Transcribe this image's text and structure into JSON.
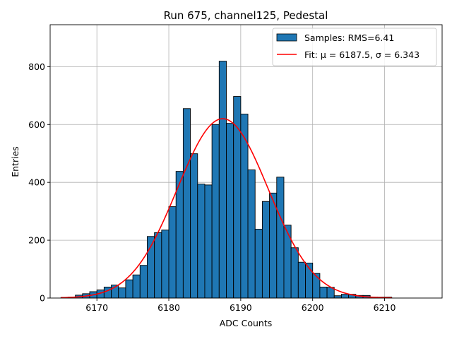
{
  "chart_data": {
    "type": "bar",
    "title": "Run 675, channel125, Pedestal",
    "xlabel": "ADC Counts",
    "ylabel": "Entries",
    "xlim": [
      6163.5,
      6218
    ],
    "ylim": [
      0,
      945
    ],
    "xticks": [
      6170,
      6180,
      6190,
      6200,
      6210
    ],
    "yticks": [
      0,
      200,
      400,
      600,
      800
    ],
    "grid": true,
    "legend_position": "top-right",
    "histogram": {
      "name": "Samples: RMS=6.41",
      "color": "#1f77b4",
      "edge_color": "#000000",
      "bin_width": 1,
      "bin_starts": [
        6165,
        6166,
        6167,
        6168,
        6169,
        6170,
        6171,
        6172,
        6173,
        6174,
        6175,
        6176,
        6177,
        6178,
        6179,
        6180,
        6181,
        6182,
        6183,
        6184,
        6185,
        6186,
        6187,
        6188,
        6189,
        6190,
        6191,
        6192,
        6193,
        6194,
        6195,
        6196,
        6197,
        6198,
        6199,
        6200,
        6201,
        6202,
        6203,
        6204,
        6205,
        6206,
        6207,
        6208,
        6209,
        6210
      ],
      "counts": [
        2,
        3,
        10,
        15,
        22,
        28,
        38,
        45,
        35,
        63,
        80,
        113,
        213,
        226,
        235,
        316,
        438,
        655,
        499,
        394,
        391,
        600,
        819,
        604,
        697,
        636,
        443,
        238,
        334,
        363,
        418,
        252,
        174,
        124,
        121,
        85,
        38,
        37,
        8,
        13,
        13,
        9,
        9,
        3,
        3,
        3
      ]
    },
    "fit": {
      "name": "Fit: μ = 6187.5, σ = 6.343",
      "mu": 6187.5,
      "sigma": 6.343,
      "amplitude": 620,
      "x_range": [
        6165,
        6211
      ],
      "color": "#ff0000"
    }
  }
}
